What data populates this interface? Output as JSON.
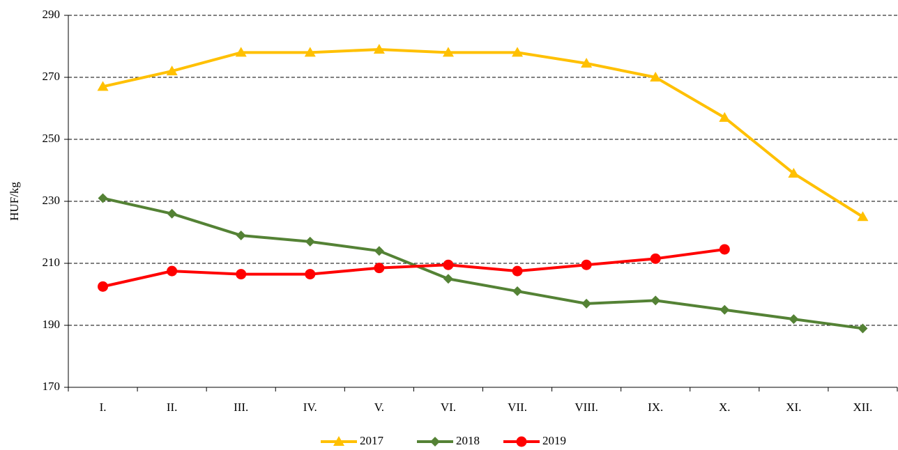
{
  "chart_data": {
    "type": "line",
    "y_label": "HUF/kg",
    "categories": [
      "I.",
      "II.",
      "III.",
      "IV.",
      "V.",
      "VI.",
      "VII.",
      "VIII.",
      "IX.",
      "X.",
      "XI.",
      "XII."
    ],
    "series": [
      {
        "name": "2017",
        "color": "#ffc000",
        "marker": "triangle",
        "values": [
          267,
          272,
          278,
          278,
          279,
          278,
          278,
          274.5,
          270,
          257,
          239,
          225
        ]
      },
      {
        "name": "2018",
        "color": "#548235",
        "marker": "diamond",
        "values": [
          231,
          226,
          219,
          217,
          214,
          205,
          201,
          197,
          198,
          195,
          192,
          189
        ]
      },
      {
        "name": "2019",
        "color": "#ff0000",
        "marker": "circle",
        "values": [
          202.5,
          207.5,
          206.5,
          206.5,
          208.5,
          209.5,
          207.5,
          209.5,
          211.5,
          214.5,
          null,
          null
        ]
      }
    ],
    "ylim": [
      170,
      290
    ],
    "yticks": [
      170,
      190,
      210,
      230,
      250,
      270,
      290
    ],
    "grid": true,
    "legend": "bottom"
  }
}
